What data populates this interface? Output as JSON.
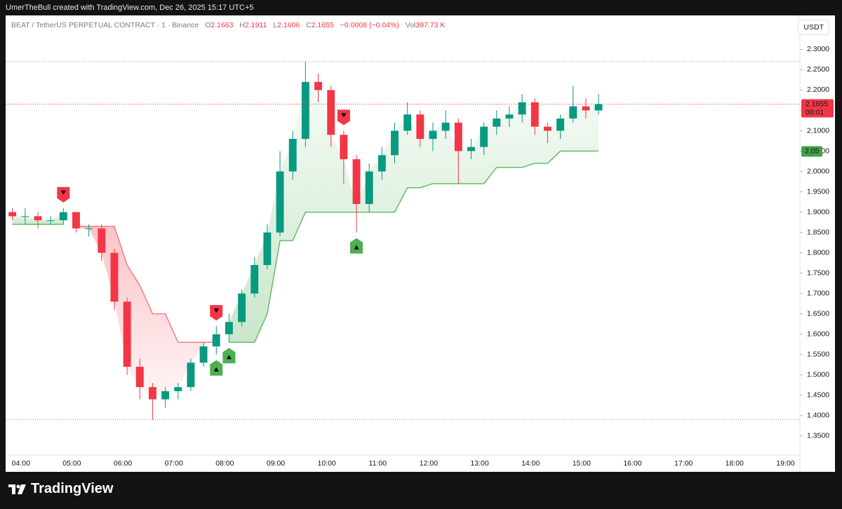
{
  "header": {
    "credit": "UmerTheBull created with TradingView.com, Dec 26, 2025 15:17 UTC+5"
  },
  "footer": {
    "brand": "TradingView"
  },
  "chart_data": {
    "type": "candlestick",
    "symbol": "BEAT / TetherUS PERPETUAL CONTRACT · 1 · Binance",
    "ohlc_legend": {
      "o_label": "O",
      "open": "2.1663",
      "h_label": "H",
      "high": "2.1911",
      "l_label": "L",
      "low": "2.1606",
      "c_label": "C",
      "close": "2.1655",
      "change": "−0.0008 (−0.04%)",
      "vol_label": "Vol",
      "volume": "397.73 K"
    },
    "currency_button": "USDT",
    "x": [
      "03:50",
      "04:05",
      "04:20",
      "04:35",
      "04:50",
      "05:05",
      "05:20",
      "05:35",
      "05:50",
      "06:05",
      "06:20",
      "06:35",
      "06:50",
      "07:05",
      "07:20",
      "07:35",
      "07:50",
      "08:05",
      "08:20",
      "08:35",
      "08:50",
      "09:05",
      "09:20",
      "09:35",
      "09:50",
      "10:05",
      "10:20",
      "10:35",
      "10:50",
      "11:05",
      "11:20",
      "11:35",
      "11:50",
      "12:05",
      "12:20",
      "12:35",
      "12:50",
      "13:05",
      "13:20",
      "13:35",
      "13:50",
      "14:05",
      "14:20",
      "14:35",
      "14:50",
      "15:05",
      "15:20"
    ],
    "open": [
      1.9,
      1.89,
      1.89,
      1.88,
      1.88,
      1.9,
      1.86,
      1.86,
      1.8,
      1.68,
      1.52,
      1.47,
      1.44,
      1.46,
      1.47,
      1.53,
      1.57,
      1.6,
      1.63,
      1.7,
      1.77,
      1.85,
      2.0,
      2.08,
      2.22,
      2.2,
      2.09,
      2.03,
      1.92,
      2.0,
      2.04,
      2.1,
      2.14,
      2.08,
      2.1,
      2.12,
      2.05,
      2.06,
      2.11,
      2.13,
      2.14,
      2.17,
      2.11,
      2.1,
      2.13,
      2.16,
      2.15
    ],
    "high": [
      1.91,
      1.91,
      1.9,
      1.89,
      1.91,
      1.9,
      1.87,
      1.87,
      1.81,
      1.69,
      1.54,
      1.48,
      1.47,
      1.48,
      1.54,
      1.58,
      1.62,
      1.65,
      1.71,
      1.79,
      1.87,
      2.05,
      2.1,
      2.27,
      2.24,
      2.21,
      2.1,
      2.04,
      2.02,
      2.06,
      2.12,
      2.17,
      2.15,
      2.12,
      2.15,
      2.13,
      2.08,
      2.12,
      2.15,
      2.16,
      2.19,
      2.18,
      2.12,
      2.14,
      2.21,
      2.18,
      2.19
    ],
    "low": [
      1.88,
      1.87,
      1.86,
      1.87,
      1.87,
      1.85,
      1.84,
      1.78,
      1.66,
      1.5,
      1.44,
      1.39,
      1.42,
      1.44,
      1.46,
      1.52,
      1.55,
      1.58,
      1.62,
      1.69,
      1.76,
      1.84,
      1.98,
      2.06,
      2.17,
      2.06,
      1.97,
      1.85,
      1.9,
      1.98,
      2.02,
      2.09,
      2.06,
      2.05,
      2.08,
      1.97,
      2.03,
      2.04,
      2.09,
      2.11,
      2.12,
      2.09,
      2.07,
      2.08,
      2.12,
      2.13,
      2.14
    ],
    "close": [
      1.89,
      1.89,
      1.88,
      1.88,
      1.9,
      1.86,
      1.86,
      1.8,
      1.68,
      1.52,
      1.47,
      1.44,
      1.46,
      1.47,
      1.53,
      1.57,
      1.6,
      1.63,
      1.7,
      1.77,
      1.85,
      2.0,
      2.08,
      2.22,
      2.2,
      2.09,
      2.03,
      1.92,
      2.0,
      2.04,
      2.1,
      2.14,
      2.08,
      2.1,
      2.12,
      2.05,
      2.06,
      2.11,
      2.13,
      2.14,
      2.17,
      2.11,
      2.1,
      2.13,
      2.16,
      2.15,
      2.1655
    ],
    "up_color": "#089981",
    "down_color": "#f23645",
    "trail_up": [
      1.87,
      1.87,
      1.87,
      1.87,
      1.87,
      null,
      null,
      null,
      null,
      null,
      null,
      null,
      null,
      null,
      null,
      null,
      null,
      1.58,
      1.58,
      1.58,
      1.65,
      1.83,
      1.83,
      1.9,
      1.9,
      1.9,
      1.9,
      1.9,
      1.9,
      1.9,
      1.9,
      1.96,
      1.96,
      1.97,
      1.97,
      1.97,
      1.97,
      1.97,
      2.01,
      2.01,
      2.01,
      2.02,
      2.02,
      2.05,
      2.05,
      2.05,
      2.05
    ],
    "trail_down": [
      null,
      null,
      null,
      null,
      null,
      1.865,
      1.865,
      1.865,
      1.865,
      1.77,
      1.72,
      1.65,
      1.65,
      1.58,
      1.58,
      1.58,
      1.58,
      null,
      null,
      null,
      null,
      null,
      null,
      null,
      null,
      null,
      null,
      null,
      null,
      null,
      null,
      null,
      null,
      null,
      null,
      null,
      null,
      null,
      null,
      null,
      null,
      null,
      null,
      null,
      null,
      null,
      null
    ],
    "trail_up_color": "#66bb6a",
    "trail_down_color": "#f77c80",
    "signals": [
      {
        "type": "sell",
        "x": "04:50"
      },
      {
        "type": "sell",
        "x": "07:50"
      },
      {
        "type": "sell",
        "x": "10:20"
      },
      {
        "type": "buy",
        "x": "07:50"
      },
      {
        "type": "buy",
        "x": "08:05"
      },
      {
        "type": "buy",
        "x": "10:35"
      }
    ],
    "hlines": [
      2.27,
      1.39
    ],
    "last_price_label": "2.1655",
    "countdown": "00:01",
    "trail_label": {
      "value": 2.05,
      "label": "2.05"
    },
    "ylim": [
      1.31,
      2.38
    ],
    "yticks": [
      {
        "value": 1.35,
        "label": "1.3500"
      },
      {
        "value": 1.4,
        "label": "1.4000"
      },
      {
        "value": 1.45,
        "label": "1.4500"
      },
      {
        "value": 1.5,
        "label": "1.5000"
      },
      {
        "value": 1.55,
        "label": "1.5500"
      },
      {
        "value": 1.6,
        "label": "1.6000"
      },
      {
        "value": 1.65,
        "label": "1.6500"
      },
      {
        "value": 1.7,
        "label": "1.7000"
      },
      {
        "value": 1.75,
        "label": "1.7500"
      },
      {
        "value": 1.8,
        "label": "1.8000"
      },
      {
        "value": 1.85,
        "label": "1.8500"
      },
      {
        "value": 1.9,
        "label": "1.9000"
      },
      {
        "value": 1.95,
        "label": "1.9500"
      },
      {
        "value": 2.0,
        "label": "2.0000"
      },
      {
        "value": 2.05,
        "label": "2.0500"
      },
      {
        "value": 2.1,
        "label": "2.1000"
      },
      {
        "value": 2.15,
        "label": "2.1500"
      },
      {
        "value": 2.2,
        "label": "2.2000"
      },
      {
        "value": 2.25,
        "label": "2.2500"
      },
      {
        "value": 2.3,
        "label": "2.3000"
      }
    ],
    "xlim": [
      "03:42",
      "19:17"
    ],
    "xticks": [
      "04:00",
      "05:00",
      "06:00",
      "07:00",
      "08:00",
      "09:00",
      "10:00",
      "11:00",
      "12:00",
      "13:00",
      "14:00",
      "15:00",
      "16:00",
      "17:00",
      "18:00",
      "19:00"
    ]
  }
}
